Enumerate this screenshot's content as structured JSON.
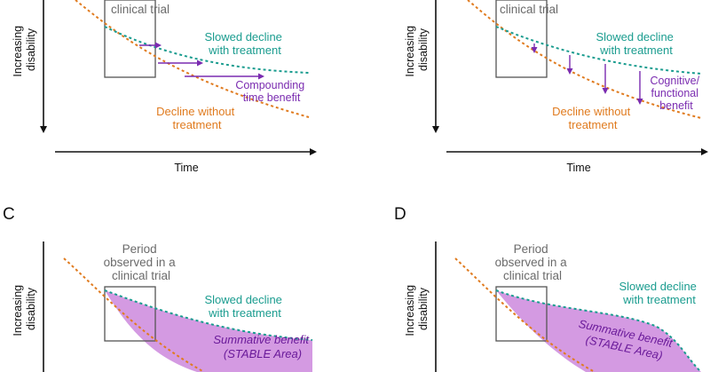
{
  "panel_a": {
    "observed_label": "clinical trial",
    "y_axis": [
      "Increasing",
      "disability"
    ],
    "x_axis": "Time",
    "treated_label": [
      "Slowed decline",
      "with treatment"
    ],
    "benefit_label": [
      "Compounding",
      "time benefit"
    ],
    "untreated_label": [
      "Decline without",
      "treatment"
    ]
  },
  "panel_b": {
    "observed_label": "clinical trial",
    "y_axis": [
      "Increasing",
      "disability"
    ],
    "x_axis": "Time",
    "treated_label": [
      "Slowed decline",
      "with treatment"
    ],
    "benefit_label": [
      "Cognitive/",
      "functional",
      "benefit"
    ],
    "untreated_label": [
      "Decline without",
      "treatment"
    ]
  },
  "panel_c": {
    "letter": "C",
    "observed_label": [
      "Period",
      "observed in a",
      "clinical trial"
    ],
    "y_axis": [
      "Increasing",
      "disability"
    ],
    "treated_label": [
      "Slowed decline",
      "with treatment"
    ],
    "benefit_label": [
      "Summative benefit",
      "(STABLE Area)"
    ]
  },
  "panel_d": {
    "letter": "D",
    "observed_label": [
      "Period",
      "observed in a",
      "clinical trial"
    ],
    "y_axis": [
      "Increasing",
      "disability"
    ],
    "treated_label": [
      "Slowed decline",
      "with treatment"
    ],
    "benefit_label": [
      "Summative benefit",
      "(STABLE Area)"
    ]
  },
  "colors": {
    "untreated": "#e07b1f",
    "treated": "#1a9c8f",
    "benefit": "#7a2bb0",
    "area": "#cc88dd"
  }
}
